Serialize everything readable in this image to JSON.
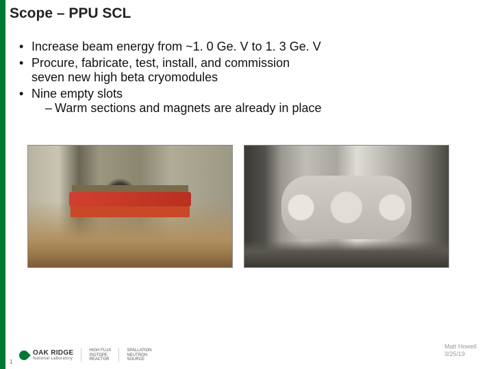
{
  "accent_color": "#007a33",
  "title": "Scope – PPU SCL",
  "bullets": [
    {
      "text": "Increase beam energy from ~1. 0 Ge. V to 1. 3 Ge. V"
    },
    {
      "text": "Procure, fabricate, test, install, and commission",
      "line2": "seven new high beta cryomodules"
    },
    {
      "text": "Nine empty slots",
      "sub": [
        "Warm sections and magnets are already in place"
      ]
    }
  ],
  "images": [
    {
      "alt": "Accelerator tunnel linac section"
    },
    {
      "alt": "High beta cryomodules installed"
    }
  ],
  "footer": {
    "page": "1",
    "logo_main": "OAK RIDGE",
    "logo_sub": "National Laboratory",
    "program1_l1": "HIGH FLUX",
    "program1_l2": "ISOTOPE",
    "program1_l3": "REACTOR",
    "program2_l1": "SPALLATION",
    "program2_l2": "NEUTRON",
    "program2_l3": "SOURCE",
    "author": "Matt Howell",
    "date": "3/25/19"
  }
}
